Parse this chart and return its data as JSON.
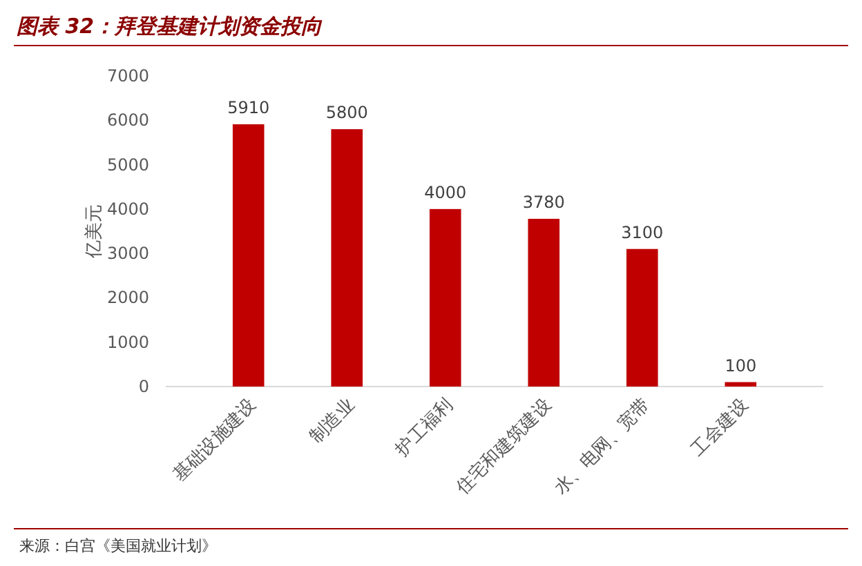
{
  "chart_data": {
    "type": "bar",
    "title": "图表 32：拜登基建计划资金投向",
    "ylabel": "亿美元",
    "categories": [
      "基础设施建设",
      "制造业",
      "护工福利",
      "住宅和建筑建设",
      "水、电网、宽带",
      "工会建设"
    ],
    "values": [
      5910,
      5800,
      4000,
      3780,
      3100,
      100
    ],
    "color": "#c00000",
    "ylim": [
      0,
      7000
    ],
    "yticks": [
      0,
      1000,
      2000,
      3000,
      4000,
      5000,
      6000,
      7000
    ],
    "data_labels": true,
    "annotations": [
      "来源：白宫《美国就业计划》"
    ]
  }
}
